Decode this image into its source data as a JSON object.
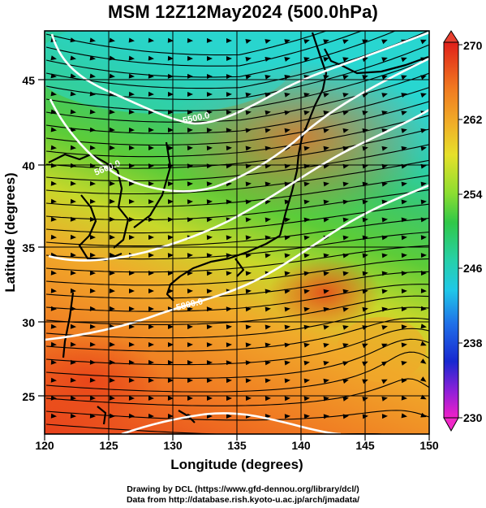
{
  "title": "MSM 12Z12May2024 (500.0hPa)",
  "xlabel": "Longitude (degrees)",
  "ylabel": "Latitude  (degrees)",
  "x_ticks": [
    "120",
    "125",
    "130",
    "135",
    "140",
    "145",
    "150"
  ],
  "y_ticks": [
    "25",
    "30",
    "35",
    "40",
    "45"
  ],
  "colorbar_ticks": [
    "270",
    "262",
    "254",
    "246",
    "238",
    "230"
  ],
  "contour_labels": [
    "5500.0",
    "5600.0",
    "5800.0"
  ],
  "footer_line1": "Drawing by DCL (https://www.gfd-dennou.org/library/dcl/)",
  "footer_line2": "Data from http://database.rish.kyoto-u.ac.jp/arch/jmadata/",
  "map": {
    "lon_range": [
      120,
      150
    ],
    "lat_range": [
      22.5,
      47.6
    ],
    "variable": "temperature (K) at 500.0hPa",
    "colorbar_range": [
      230,
      270
    ],
    "colors": {
      "warm": "#e8501e",
      "orange": "#f08a24",
      "yellow": "#e8d62a",
      "green": "#3cc43c",
      "cyan": "#27d6c8",
      "contour": "#ffffff"
    }
  }
}
